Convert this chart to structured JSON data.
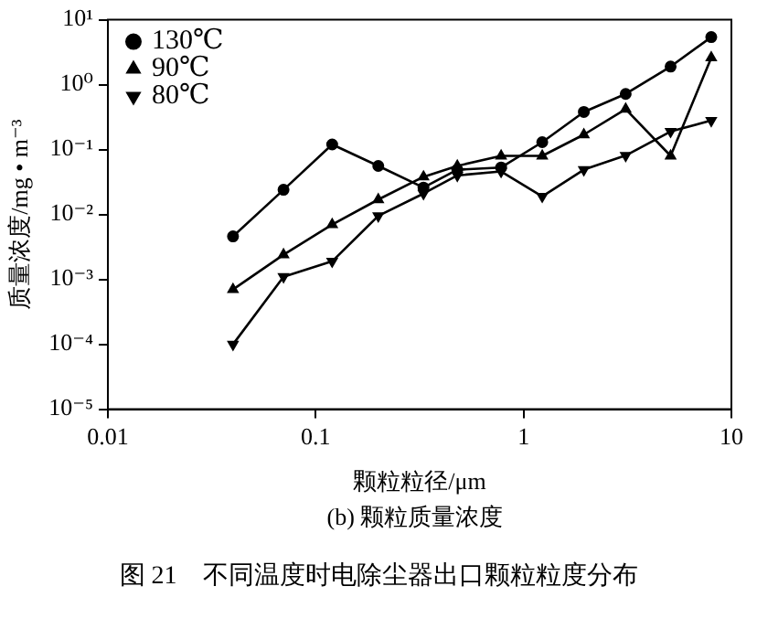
{
  "chart_data": {
    "type": "line",
    "xlabel": "颗粒粒径/μm",
    "ylabel": "质量浓度/mg • m⁻³",
    "subtitle": "(b) 颗粒质量浓度",
    "annotations": [
      "图 21　不同温度时电除尘器出口颗粒粒度分布"
    ],
    "x": [
      0.04,
      0.07,
      0.12,
      0.2,
      0.33,
      0.48,
      0.78,
      1.23,
      1.95,
      3.1,
      5.1,
      8
    ],
    "series": [
      {
        "name": "130℃",
        "color": "#000000",
        "marker": "circle",
        "values": [
          0.0046,
          0.024,
          0.12,
          0.056,
          0.026,
          0.049,
          0.053,
          0.13,
          0.38,
          0.72,
          1.9,
          5.4
        ]
      },
      {
        "name": "90℃",
        "color": "#000000",
        "marker": "triangle",
        "values": [
          0.0007,
          0.0024,
          0.007,
          0.017,
          0.038,
          0.056,
          0.08,
          0.08,
          0.17,
          0.42,
          0.08,
          2.6
        ]
      },
      {
        "name": "80℃",
        "color": "#000000",
        "marker": "triangle_down",
        "values": [
          0.0001,
          0.0011,
          0.0019,
          0.0095,
          0.021,
          0.04,
          0.046,
          0.019,
          0.049,
          0.081,
          0.19,
          0.28
        ]
      }
    ],
    "log": "xy",
    "xlim": [
      0.01,
      10
    ],
    "xticks": [
      0.01,
      0.1,
      1,
      10
    ],
    "ylim": [
      1e-05,
      10
    ],
    "yticks": [
      {
        "value": 1e-05,
        "label": "10⁻⁵"
      },
      {
        "value": 0.0001,
        "label": "10⁻⁴"
      },
      {
        "value": 0.001,
        "label": "10⁻³"
      },
      {
        "value": 0.01,
        "label": "10⁻²"
      },
      {
        "value": 0.1,
        "label": "10⁻¹"
      },
      {
        "value": 1,
        "label": "10⁰"
      },
      {
        "value": 10,
        "label": "10¹"
      }
    ],
    "grid": false,
    "legend": "top left",
    "line_style": "solid"
  }
}
